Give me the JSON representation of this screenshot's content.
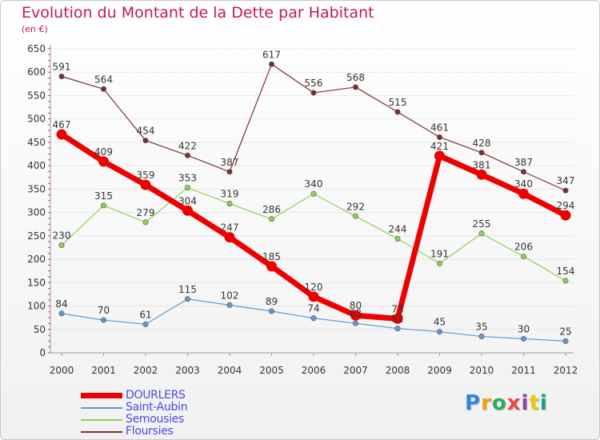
{
  "header": {
    "title": "Evolution du Montant de la Dette par Habitant",
    "subtitle": "(en €)"
  },
  "logo": {
    "text": "Proxiti",
    "colors": [
      "#2e86de",
      "#f39c12",
      "#27ae60",
      "#e74c3c",
      "#8e44ad",
      "#f1c40f",
      "#16a085"
    ]
  },
  "chart_data": {
    "type": "line",
    "title": "Evolution du Montant de la Dette par Habitant",
    "ylabel": "(en €)",
    "xlabel": "",
    "x": [
      "2000",
      "2001",
      "2002",
      "2003",
      "2004",
      "2005",
      "2006",
      "2007",
      "2008",
      "2009",
      "2010",
      "2011",
      "2012"
    ],
    "ylim": [
      0,
      650
    ],
    "yticks": [
      0,
      50,
      100,
      150,
      200,
      250,
      300,
      350,
      400,
      450,
      500,
      550,
      600,
      650
    ],
    "grid": "horizontal",
    "legend": "bottom-left",
    "series": [
      {
        "name": "DOURLERS",
        "color": "#ee0000",
        "values": [
          467,
          409,
          359,
          304,
          247,
          185,
          120,
          80,
          73,
          421,
          381,
          340,
          294
        ]
      },
      {
        "name": "Saint-Aubin",
        "color": "#5b9bd5",
        "values": [
          84,
          70,
          61,
          115,
          102,
          89,
          74,
          63,
          52,
          45,
          35,
          30,
          25
        ]
      },
      {
        "name": "Semousies",
        "color": "#8fd14f",
        "values": [
          230,
          315,
          279,
          353,
          319,
          286,
          340,
          292,
          244,
          191,
          255,
          206,
          154
        ]
      },
      {
        "name": "Floursies",
        "color": "#7a3030",
        "values": [
          591,
          564,
          454,
          422,
          387,
          617,
          556,
          568,
          515,
          461,
          428,
          387,
          347
        ]
      }
    ]
  }
}
